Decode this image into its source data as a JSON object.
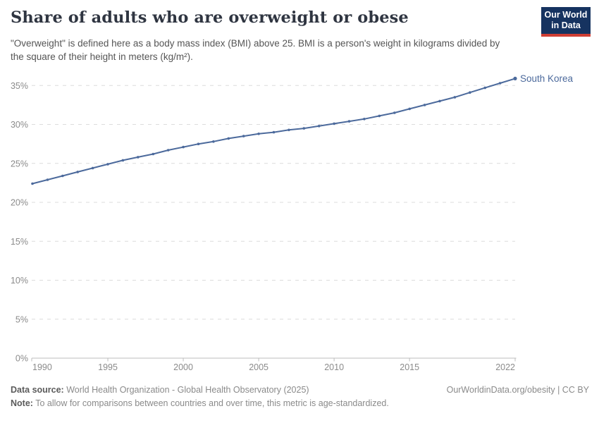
{
  "header": {
    "title": "Share of adults who are overweight or obese",
    "subtitle": "\"Overweight\" is defined here as a body mass index (BMI) above 25. BMI is a person's weight in kilograms divided by the square of their height in meters (kg/m²).",
    "logo": {
      "line1": "Our World",
      "line2": "in Data"
    }
  },
  "colors": {
    "series_line": "#4c6a9c",
    "logo_bg": "#163360",
    "logo_stripe": "#cf3e34",
    "grid": "#dcdcdc",
    "axis_line": "#bdbdbd",
    "axis_text": "#8b8b8b",
    "title_text": "#2f3541"
  },
  "chart_data": {
    "type": "line",
    "title": "Share of adults who are overweight or obese",
    "xlabel": "",
    "ylabel": "",
    "xlim": [
      1990,
      2022
    ],
    "ylim": [
      0,
      35
    ],
    "xticks": [
      1990,
      1995,
      2000,
      2005,
      2010,
      2015,
      2022
    ],
    "yticks": [
      0,
      5,
      10,
      15,
      20,
      25,
      30,
      35
    ],
    "ytick_suffix": "%",
    "grid": "horizontal-dashed",
    "legend_position": "end-of-line-label",
    "series": [
      {
        "name": "South Korea",
        "color": "#4c6a9c",
        "x": [
          1990,
          1991,
          1992,
          1993,
          1994,
          1995,
          1996,
          1997,
          1998,
          1999,
          2000,
          2001,
          2002,
          2003,
          2004,
          2005,
          2006,
          2007,
          2008,
          2009,
          2010,
          2011,
          2012,
          2013,
          2014,
          2015,
          2016,
          2017,
          2018,
          2019,
          2020,
          2021,
          2022
        ],
        "values": [
          22.4,
          22.9,
          23.4,
          23.9,
          24.4,
          24.9,
          25.4,
          25.8,
          26.2,
          26.7,
          27.1,
          27.5,
          27.8,
          28.2,
          28.5,
          28.8,
          29.0,
          29.3,
          29.5,
          29.8,
          30.1,
          30.4,
          30.7,
          31.1,
          31.5,
          32.0,
          32.5,
          33.0,
          33.5,
          34.1,
          34.7,
          35.3,
          35.9
        ]
      }
    ]
  },
  "footer": {
    "datasource_label": "Data source:",
    "datasource_text": " World Health Organization - Global Health Observatory (2025)",
    "credit": "OurWorldinData.org/obesity | CC BY",
    "note_label": "Note:",
    "note_text": " To allow for comparisons between countries and over time, this metric is age-standardized."
  }
}
